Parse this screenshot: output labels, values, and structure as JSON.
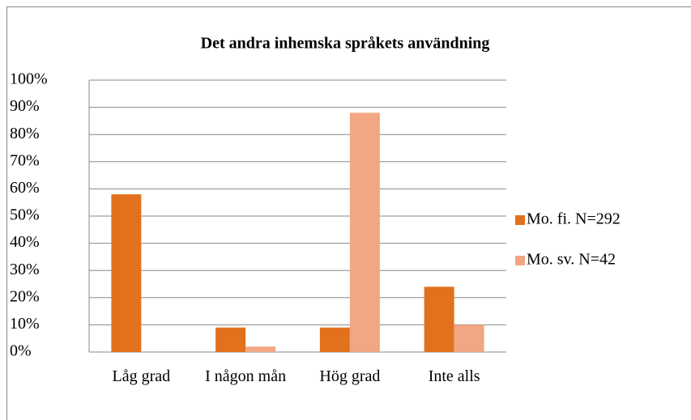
{
  "chart_data": {
    "type": "bar",
    "title": "Det andra inhemska språkets användning",
    "categories": [
      "Låg grad",
      "I någon mån",
      "Hög grad",
      "Inte alls"
    ],
    "series": [
      {
        "name": "Mo. fi. N=292",
        "color": "#e2711d",
        "values": [
          58,
          9,
          9,
          24
        ]
      },
      {
        "name": "Mo. sv. N=42",
        "color": "#f2a683",
        "values": [
          0,
          2,
          88,
          10
        ]
      }
    ],
    "ylim": [
      0,
      100
    ],
    "yticks": [
      {
        "value": 0,
        "label": "0%"
      },
      {
        "value": 10,
        "label": "10%"
      },
      {
        "value": 20,
        "label": "20%"
      },
      {
        "value": 30,
        "label": "30%"
      },
      {
        "value": 40,
        "label": "40%"
      },
      {
        "value": 50,
        "label": "50%"
      },
      {
        "value": 60,
        "label": "60%"
      },
      {
        "value": 70,
        "label": "70%"
      },
      {
        "value": 80,
        "label": "80%"
      },
      {
        "value": 90,
        "label": "90%"
      },
      {
        "value": 100,
        "label": "100%"
      }
    ],
    "grid": true,
    "legend": "right"
  }
}
